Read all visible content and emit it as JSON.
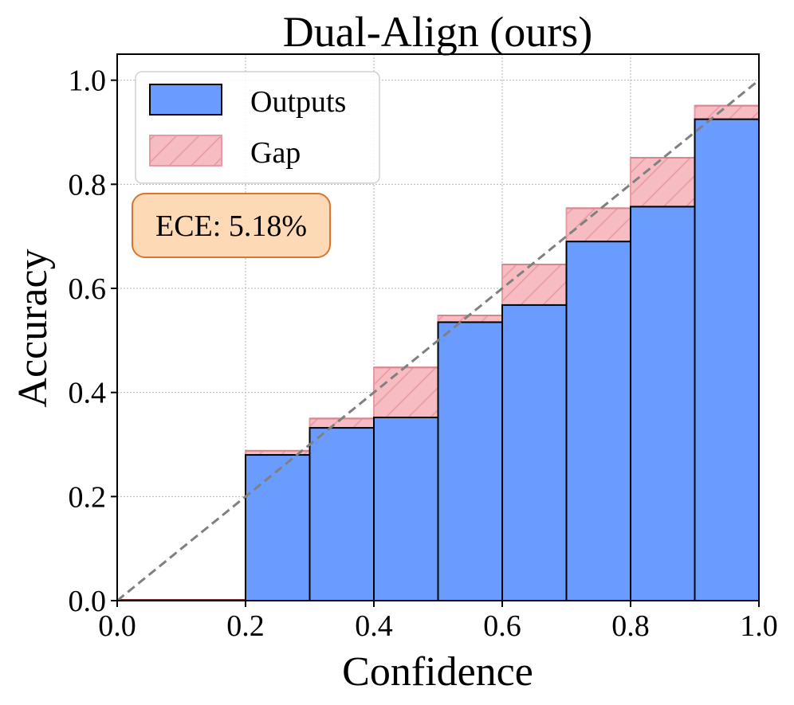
{
  "chart_data": {
    "type": "bar",
    "title": "Dual-Align (ours)",
    "xlabel": "Confidence",
    "ylabel": "Accuracy",
    "xlim": [
      0.0,
      1.0
    ],
    "ylim": [
      0.0,
      1.05
    ],
    "xticks": [
      "0.0",
      "0.2",
      "0.4",
      "0.6",
      "0.8",
      "1.0"
    ],
    "yticks": [
      "0.0",
      "0.2",
      "0.4",
      "0.6",
      "0.8",
      "1.0"
    ],
    "grid": true,
    "legend_position": "upper-left",
    "bin_edges": [
      0.0,
      0.1,
      0.2,
      0.3,
      0.4,
      0.5,
      0.6,
      0.7,
      0.8,
      0.9,
      1.0
    ],
    "series": [
      {
        "name": "Outputs",
        "values": [
          0.0,
          0.0,
          0.28,
          0.332,
          0.352,
          0.535,
          0.568,
          0.69,
          0.757,
          0.925
        ],
        "color": "#6a9cff"
      },
      {
        "name": "Gap",
        "bottom": [
          0.0,
          0.0,
          0.28,
          0.332,
          0.352,
          0.535,
          0.568,
          0.69,
          0.757,
          0.925
        ],
        "top": [
          0.0,
          0.0,
          0.288,
          0.35,
          0.448,
          0.548,
          0.646,
          0.754,
          0.851,
          0.951
        ],
        "color": "#f7bcc2"
      }
    ],
    "reference_line": {
      "x": [
        0.0,
        1.0
      ],
      "y": [
        0.0,
        1.0
      ],
      "style": "dashed",
      "color": "#808080"
    },
    "annotation": "ECE: 5.18%"
  }
}
